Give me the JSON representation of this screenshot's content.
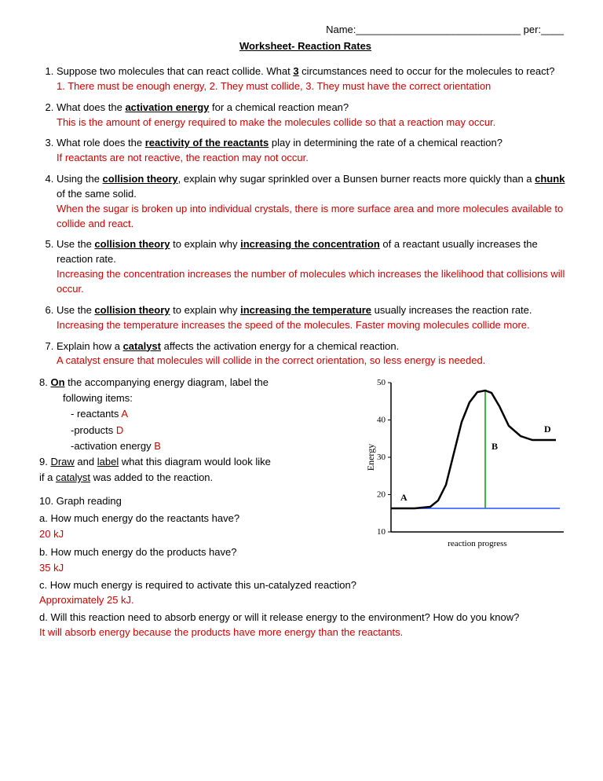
{
  "header": {
    "name_label": "Name:",
    "name_blank": "_____________________________",
    "per_label": "per:",
    "per_blank": "____"
  },
  "title": "Worksheet- Reaction Rates",
  "q1": {
    "text_a": "Suppose two molecules that can react collide.  What ",
    "three": "3",
    "text_b": " circumstances need to occur for the molecules to react?",
    "ans": "1. There must be enough energy, 2.  They must collide, 3. They must have the correct orientation"
  },
  "q2": {
    "text_a": "What does the ",
    "term": "activation energy",
    "text_b": " for a chemical reaction mean?",
    "ans": "This is the amount of energy required to make the molecules collide so that a reaction may occur."
  },
  "q3": {
    "text_a": "What role does the ",
    "term": "reactivity of the reactants",
    "text_b": " play in determining the rate of a chemical reaction?",
    "ans": "If reactants are not reactive, the reaction may not occur."
  },
  "q4": {
    "text_a": "Using the ",
    "term1": "collision theory",
    "text_b": ", explain why sugar sprinkled over a Bunsen burner  reacts more quickly than a ",
    "term2": "chunk",
    "text_c": " of the same solid.",
    "ans": "When the sugar is broken up into individual crystals, there is more surface area and more molecules available to collide and react."
  },
  "q5": {
    "text_a": "Use the ",
    "term1": "collision theory",
    "text_b": " to explain why ",
    "term2": "increasing the concentration",
    "text_c": " of a reactant usually increases the reaction rate.",
    "ans": "Increasing the concentration increases the number of molecules which increases the likelihood that collisions will occur."
  },
  "q6": {
    "text_a": "Use the ",
    "term1": "collision theory",
    "text_b": " to explain why ",
    "term2": "increasing the temperature",
    "text_c": " usually increases the reaction rate.",
    "ans": "Increasing the temperature increases the speed of the molecules.  Faster moving molecules collide more."
  },
  "q7": {
    "text_a": "Explain how a ",
    "term": "catalyst",
    "text_b": " affects the activation energy for a chemical reaction.",
    "ans": "A catalyst ensure that molecules will collide in the correct orientation, so less energy is needed."
  },
  "q8": {
    "lead_a": "8.  ",
    "on": "On",
    "lead_b": " the accompanying energy diagram, label   the",
    "line2": "following items:",
    "item1_a": "- reactants ",
    "item1_b": "A",
    "item2_a": "-products ",
    "item2_b": "D",
    "item3_a": "-activation energy ",
    "item3_b": "B"
  },
  "q9": {
    "a": "9.  ",
    "draw": "Draw",
    "b": " and ",
    "label": "label",
    "c": " what this diagram would look like",
    "d": "if a ",
    "cat": "catalyst",
    "e": " was added to the reaction."
  },
  "q10": {
    "lead": "10.  Graph reading",
    "a_q": "a.  How much energy do the reactants have?",
    "a_ans": "20 kJ",
    "b_q": "b.  How much energy do the products have?",
    "b_ans": " 35 kJ",
    "c_q": "c.  How much energy is required to activate this un-catalyzed reaction?",
    "c_ans": "Approximately 25 kJ.",
    "d_q": "d.  Will this reaction need to absorb energy or will it release energy to the environment?  How do you know?",
    "d_ans": "It will absorb energy because the products have more energy than the reactants."
  },
  "chart": {
    "type": "line",
    "y_label": "Energy",
    "x_label": "reaction progress",
    "y_ticks": [
      "10",
      "20",
      "30",
      "40",
      "50"
    ],
    "ylim": [
      10,
      50
    ],
    "curve_color": "#000000",
    "ref_line_color": "#2050ff",
    "b_line_color": "#00a000",
    "letter_A": "A",
    "letter_B": "B",
    "letter_D": "D",
    "background": "#ffffff",
    "axis_color": "#000000",
    "label_fontsize": 11,
    "curve_width": 2.5,
    "curve_points": [
      [
        30,
        170
      ],
      [
        60,
        170
      ],
      [
        80,
        168
      ],
      [
        90,
        160
      ],
      [
        100,
        140
      ],
      [
        110,
        100
      ],
      [
        120,
        60
      ],
      [
        130,
        35
      ],
      [
        140,
        22
      ],
      [
        150,
        20
      ],
      [
        158,
        23
      ],
      [
        168,
        40
      ],
      [
        180,
        65
      ],
      [
        195,
        78
      ],
      [
        210,
        83
      ],
      [
        240,
        83
      ]
    ],
    "ref_y": 170,
    "b_x": 150,
    "b_top": 20,
    "b_bot": 170,
    "a_pos": [
      42,
      160
    ],
    "d_pos": [
      225,
      73
    ],
    "b_pos": [
      158,
      95
    ]
  }
}
